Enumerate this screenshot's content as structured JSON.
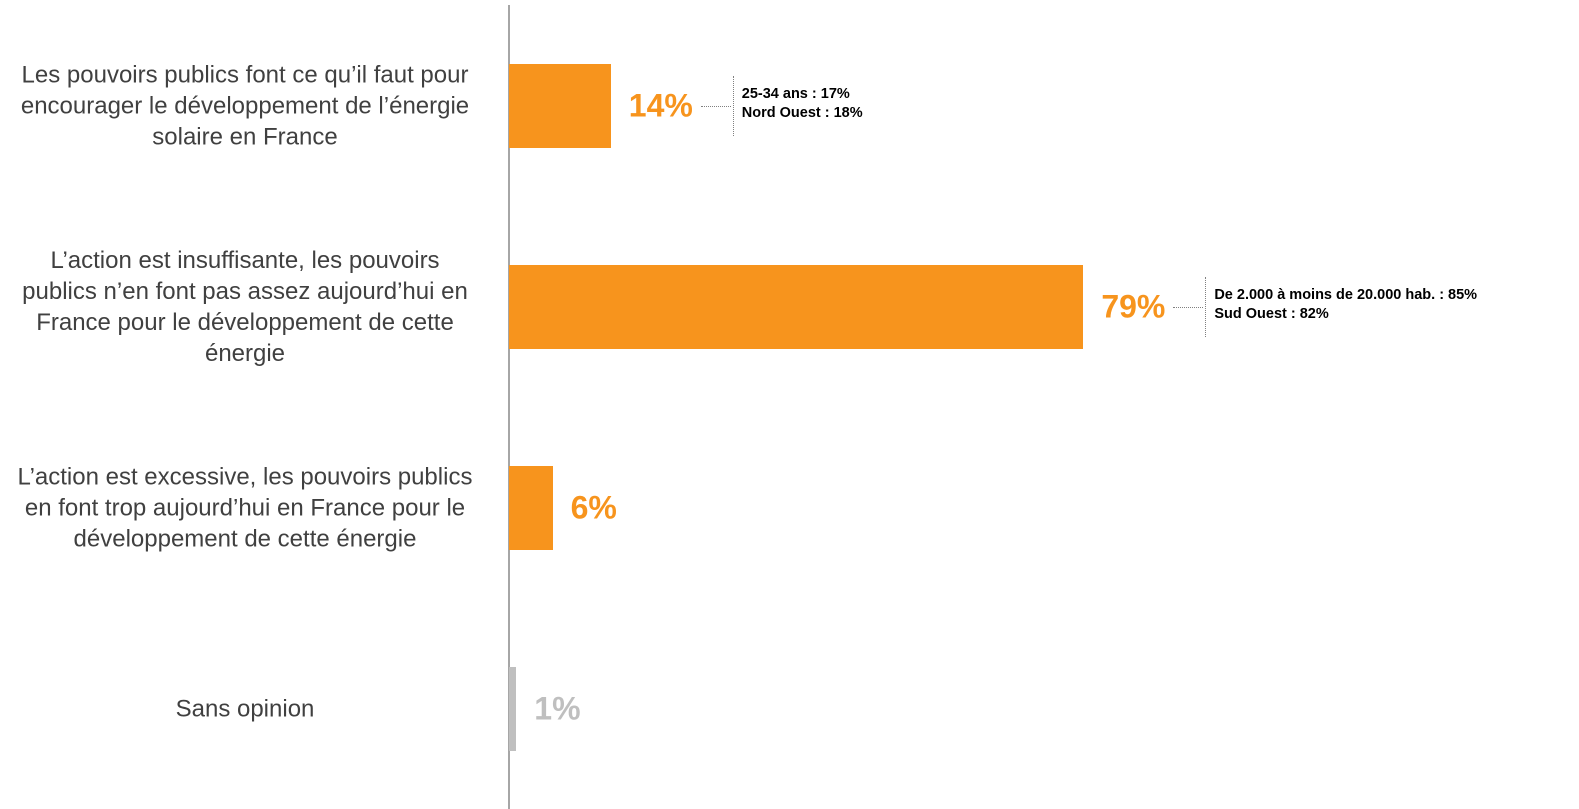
{
  "chart_data": {
    "type": "bar",
    "orientation": "horizontal",
    "categories": [
      "Les pouvoirs publics font ce qu’il faut pour encourager le développement de l’énergie solaire en France",
      "L’action est insuffisante, les pouvoirs publics n’en font pas assez aujourd’hui en France pour le développement de cette énergie",
      "L’action est excessive, les pouvoirs publics en font trop aujourd’hui en France pour le développement de cette énergie",
      "Sans opinion"
    ],
    "values": [
      14,
      79,
      6,
      1
    ],
    "value_labels": [
      "14%",
      "79%",
      "6%",
      "1%"
    ],
    "colors": [
      "#F7941D",
      "#F7941D",
      "#F7941D",
      "#BFBFBF"
    ],
    "annotations": [
      [
        "25-34 ans : 17%",
        "Nord Ouest : 18%"
      ],
      [
        "De 2.000 à moins de 20.000 hab. : 85%",
        "Sud Ouest : 82%"
      ],
      null,
      null
    ]
  }
}
